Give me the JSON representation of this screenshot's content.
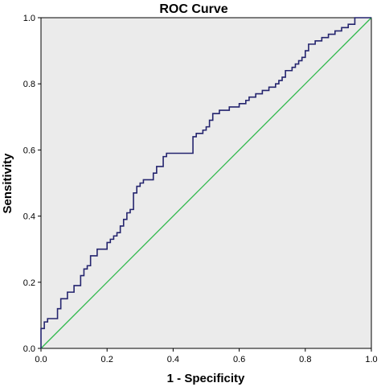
{
  "chart_data": {
    "type": "line",
    "title": "ROC Curve",
    "xlabel": "1 - Specificity",
    "ylabel": "Sensitivity",
    "xlim": [
      0,
      1
    ],
    "ylim": [
      0,
      1
    ],
    "x_ticks": [
      "0.0",
      "0.2",
      "0.4",
      "0.6",
      "0.8",
      "1.0"
    ],
    "y_ticks": [
      "0.0",
      "0.2",
      "0.4",
      "0.6",
      "0.8",
      "1.0"
    ],
    "grid": false,
    "legend": "none",
    "colors": {
      "plot_background": "#ebebeb",
      "roc_line": "#24246e",
      "reference_line": "#2db84a",
      "frame": "#000000"
    },
    "series": [
      {
        "x": [
          0,
          0,
          0.01,
          0.01,
          0.02,
          0.02,
          0.05,
          0.05,
          0.06,
          0.06,
          0.08,
          0.08,
          0.1,
          0.1,
          0.12,
          0.12,
          0.13,
          0.13,
          0.14,
          0.14,
          0.15,
          0.15,
          0.17,
          0.17,
          0.2,
          0.2,
          0.21,
          0.21,
          0.22,
          0.22,
          0.23,
          0.23,
          0.24,
          0.24,
          0.25,
          0.25,
          0.26,
          0.26,
          0.27,
          0.27,
          0.28,
          0.28,
          0.29,
          0.29,
          0.3,
          0.3,
          0.31,
          0.31,
          0.34,
          0.34,
          0.35,
          0.35,
          0.37,
          0.37,
          0.38,
          0.38,
          0.46,
          0.46,
          0.47,
          0.47,
          0.49,
          0.49,
          0.5,
          0.5,
          0.51,
          0.51,
          0.52,
          0.52,
          0.54,
          0.54,
          0.57,
          0.57,
          0.6,
          0.6,
          0.62,
          0.62,
          0.63,
          0.63,
          0.65,
          0.65,
          0.67,
          0.67,
          0.69,
          0.69,
          0.71,
          0.71,
          0.72,
          0.72,
          0.73,
          0.73,
          0.74,
          0.74,
          0.76,
          0.76,
          0.77,
          0.77,
          0.78,
          0.78,
          0.79,
          0.79,
          0.8,
          0.8,
          0.81,
          0.81,
          0.83,
          0.83,
          0.85,
          0.85,
          0.87,
          0.87,
          0.89,
          0.89,
          0.91,
          0.91,
          0.93,
          0.93,
          0.95,
          0.95,
          1.0
        ],
        "y": [
          0,
          0.06,
          0.06,
          0.08,
          0.08,
          0.09,
          0.09,
          0.12,
          0.12,
          0.15,
          0.15,
          0.17,
          0.17,
          0.19,
          0.19,
          0.22,
          0.22,
          0.24,
          0.24,
          0.25,
          0.25,
          0.28,
          0.28,
          0.3,
          0.3,
          0.32,
          0.32,
          0.33,
          0.33,
          0.34,
          0.34,
          0.35,
          0.35,
          0.37,
          0.37,
          0.39,
          0.39,
          0.41,
          0.41,
          0.42,
          0.42,
          0.47,
          0.47,
          0.49,
          0.49,
          0.5,
          0.5,
          0.51,
          0.51,
          0.53,
          0.53,
          0.55,
          0.55,
          0.58,
          0.58,
          0.59,
          0.59,
          0.64,
          0.64,
          0.65,
          0.65,
          0.66,
          0.66,
          0.67,
          0.67,
          0.69,
          0.69,
          0.71,
          0.71,
          0.72,
          0.72,
          0.73,
          0.73,
          0.74,
          0.74,
          0.75,
          0.75,
          0.76,
          0.76,
          0.77,
          0.77,
          0.78,
          0.78,
          0.79,
          0.79,
          0.8,
          0.8,
          0.81,
          0.81,
          0.82,
          0.82,
          0.84,
          0.84,
          0.85,
          0.85,
          0.86,
          0.86,
          0.87,
          0.87,
          0.88,
          0.88,
          0.9,
          0.9,
          0.92,
          0.92,
          0.93,
          0.93,
          0.94,
          0.94,
          0.95,
          0.95,
          0.96,
          0.96,
          0.97,
          0.97,
          0.98,
          0.98,
          1.0,
          1.0
        ]
      },
      {
        "x": [
          0,
          1
        ],
        "y": [
          0,
          1
        ]
      }
    ]
  }
}
